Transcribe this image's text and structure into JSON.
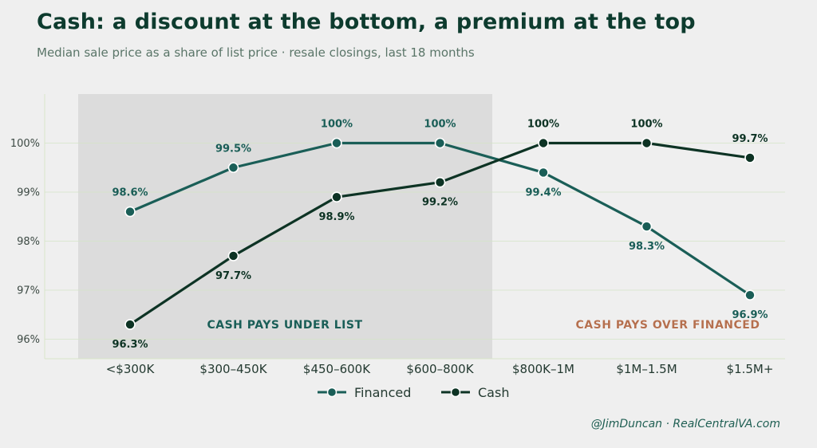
{
  "header": {
    "title": "Cash: a discount at the bottom, a premium at the top",
    "subtitle": "Median sale price as a share of list price  ·  resale closings, last 18 months"
  },
  "footer": {
    "credit": "@JimDuncan  ·  RealCentralVA.com"
  },
  "colors": {
    "financed": "#1a5e57",
    "cash": "#0d3324",
    "shade": "#dcdcdc",
    "annot_under": "#1a5e57",
    "annot_over": "#b5704f"
  },
  "chart_data": {
    "type": "line",
    "categories": [
      "<$300K",
      "$300–450K",
      "$450–600K",
      "$600–800K",
      "$800K–1M",
      "$1M–1.5M",
      "$1.5M+"
    ],
    "ylim": [
      95.6,
      101.0
    ],
    "yticks": [
      96,
      97,
      98,
      99,
      100
    ],
    "ytick_labels": [
      "96%",
      "97%",
      "98%",
      "99%",
      "100%"
    ],
    "grid": true,
    "legend_position": "bottom-center",
    "series": [
      {
        "name": "Financed",
        "key": "financed",
        "values": [
          98.6,
          99.5,
          100.0,
          100.0,
          99.4,
          98.3,
          96.9
        ],
        "labels": [
          "98.6%",
          "99.5%",
          "100%",
          "100%",
          "99.4%",
          "98.3%",
          "96.9%"
        ],
        "label_pos": [
          "above",
          "above",
          "above",
          "above",
          "below",
          "below",
          "below"
        ]
      },
      {
        "name": "Cash",
        "key": "cash",
        "values": [
          96.3,
          97.7,
          98.9,
          99.2,
          100.0,
          100.0,
          99.7
        ],
        "labels": [
          "96.3%",
          "97.7%",
          "98.9%",
          "99.2%",
          "100%",
          "100%",
          "99.7%"
        ],
        "label_pos": [
          "below",
          "below",
          "below",
          "below",
          "above",
          "above",
          "above"
        ]
      }
    ],
    "annotations": [
      {
        "text": "CASH PAYS UNDER LIST",
        "key": "annot_under"
      },
      {
        "text": "CASH PAYS OVER FINANCED",
        "key": "annot_over"
      }
    ]
  }
}
